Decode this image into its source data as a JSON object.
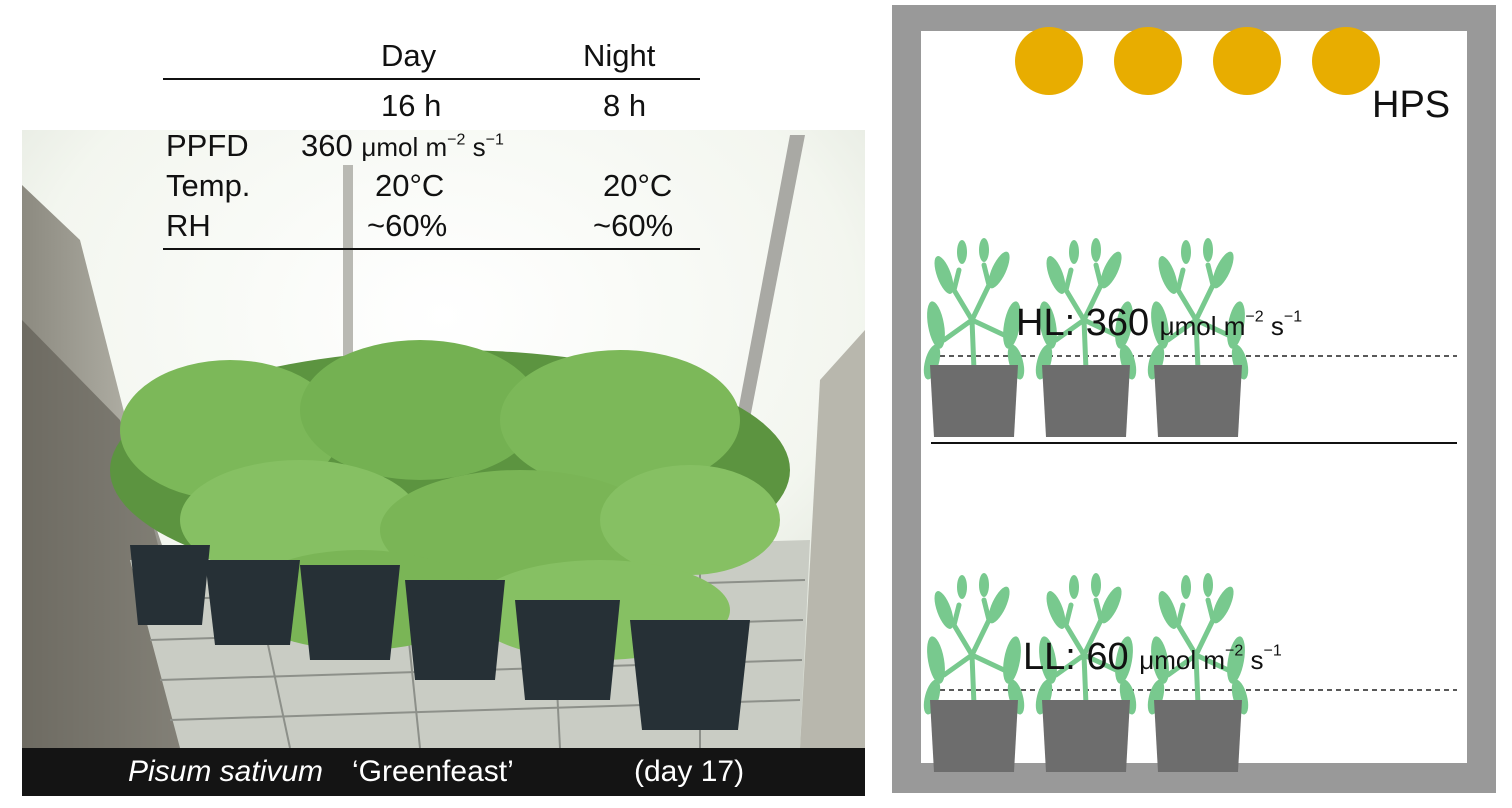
{
  "conditions_table": {
    "headers": {
      "day": "Day",
      "night": "Night"
    },
    "photoperiod": {
      "day": "16 h",
      "night": "8 h"
    },
    "ppfd": {
      "label": "PPFD",
      "value": "360",
      "unit": "μmol m",
      "exp1": "−2",
      "unit2": " s",
      "exp2": "−1"
    },
    "temp": {
      "label": "Temp.",
      "day": "20°C",
      "night": "20°C"
    },
    "rh": {
      "label": "RH",
      "day": "~60%",
      "night": "~60%"
    }
  },
  "caption": {
    "species": "Pisum sativum",
    "cultivar": "‘Greenfeast’",
    "age": "(day 17)"
  },
  "diagram": {
    "lamp_label": "HPS",
    "hl": {
      "prefix": "HL: 360",
      "unit": "μmol m",
      "exp1": "−2",
      "unit2": " s",
      "exp2": "−1"
    },
    "ll": {
      "prefix": "LL: 60",
      "unit": "μmol m",
      "exp1": "−2",
      "unit2": " s",
      "exp2": "−1"
    }
  },
  "colors": {
    "lamp": "#e8ad00",
    "frame": "#999999",
    "pot": "#6d6d6d",
    "leaf": "#78c98e"
  }
}
